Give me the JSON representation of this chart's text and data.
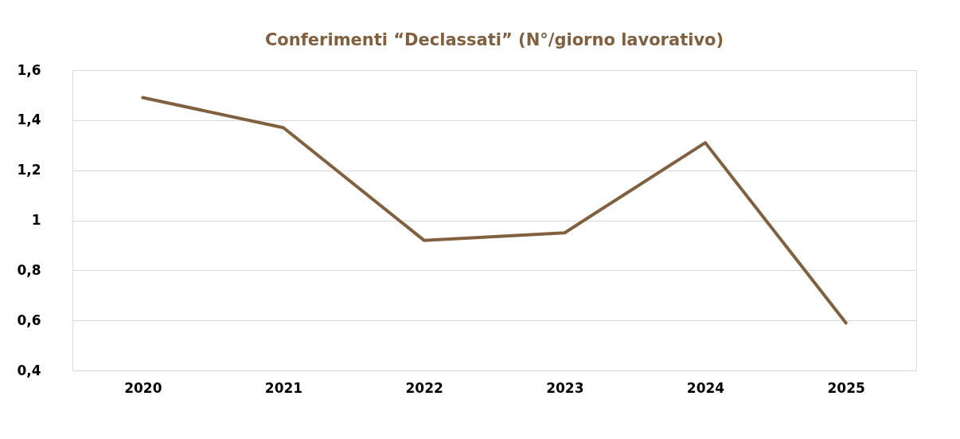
{
  "chart_data": {
    "type": "line",
    "title": "Conferimenti “Declassati” (N°/giorno lavorativo)",
    "categories": [
      "2020",
      "2021",
      "2022",
      "2023",
      "2024",
      "2025"
    ],
    "series": [
      {
        "color": "#80603f",
        "values": [
          1.49,
          1.37,
          0.92,
          0.95,
          1.31,
          0.59
        ]
      }
    ],
    "ylim": [
      0.4,
      1.6
    ],
    "yticks": [
      {
        "value": 0.4,
        "label": "0,4"
      },
      {
        "value": 0.6,
        "label": "0,6"
      },
      {
        "value": 0.8,
        "label": "0,8"
      },
      1,
      {
        "value": 1.2,
        "label": "1,2"
      },
      {
        "value": 1.4,
        "label": "1,4"
      },
      {
        "value": 1.6,
        "label": "1,6"
      }
    ],
    "grid": "y",
    "marker": "none",
    "line_style": "solid"
  }
}
